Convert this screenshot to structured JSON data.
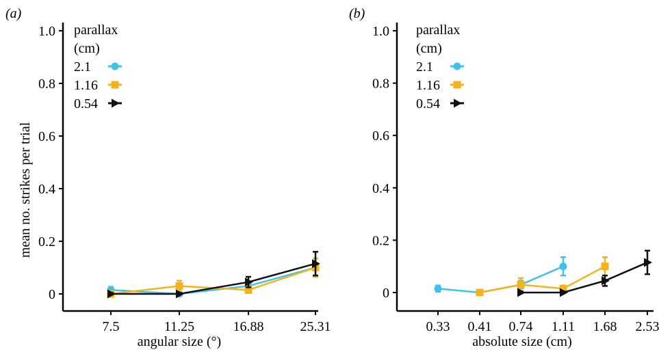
{
  "panels": [
    {
      "label": "(a)",
      "legend_title": [
        "parallax",
        "(cm)"
      ],
      "ylabel": "mean no. strikes per trial",
      "xlabel": "angular size (°)"
    },
    {
      "label": "(b)",
      "legend_title": [
        "parallax",
        "(cm)"
      ],
      "ylabel": "",
      "xlabel": "absolute size (cm)"
    }
  ],
  "chart_data": [
    {
      "type": "line",
      "title": "",
      "xlabel": "angular size (°)",
      "ylabel": "mean no. strikes per trial",
      "categories": [
        "7.5",
        "11.25",
        "16.88",
        "25.31"
      ],
      "yticks": [
        "0",
        "0.2",
        "0.4",
        "0.6",
        "0.8",
        "1.0"
      ],
      "ylim": [
        0,
        1.0
      ],
      "legend_position": "top-left",
      "series": [
        {
          "name": "2.1",
          "color": "#3ec1eb",
          "marker": "circle",
          "x": [
            "7.5",
            "11.25",
            "16.88",
            "25.31"
          ],
          "values": [
            0.015,
            0.0,
            0.03,
            0.1
          ],
          "err": [
            0.012,
            0.005,
            0.015,
            0.035
          ]
        },
        {
          "name": "1.16",
          "color": "#f5b21b",
          "marker": "square",
          "x": [
            "7.5",
            "11.25",
            "16.88",
            "25.31"
          ],
          "values": [
            0.0,
            0.03,
            0.015,
            0.1
          ],
          "err": [
            0.005,
            0.02,
            0.012,
            0.035
          ]
        },
        {
          "name": "0.54",
          "color": "#111111",
          "marker": "triangle-right",
          "x": [
            "7.5",
            "11.25",
            "16.88",
            "25.31"
          ],
          "values": [
            0.0,
            0.0,
            0.045,
            0.115
          ],
          "err": [
            0.004,
            0.004,
            0.02,
            0.045
          ]
        }
      ]
    },
    {
      "type": "line",
      "title": "",
      "xlabel": "absolute size (cm)",
      "ylabel": "",
      "categories": [
        "0.33",
        "0.41",
        "0.74",
        "1.11",
        "1.68",
        "2.53"
      ],
      "yticks": [
        "0",
        "0.2",
        "0.4",
        "0.6",
        "0.8",
        "1.0"
      ],
      "ylim": [
        0,
        1.0
      ],
      "legend_position": "top-left",
      "series": [
        {
          "name": "2.1",
          "color": "#3ec1eb",
          "marker": "circle",
          "x": [
            "0.33",
            "0.41",
            "0.74",
            "1.11"
          ],
          "values": [
            0.015,
            0.0,
            0.03,
            0.1
          ],
          "err": [
            0.012,
            0.005,
            0.015,
            0.035
          ]
        },
        {
          "name": "1.16",
          "color": "#f5b21b",
          "marker": "square",
          "x": [
            "0.41",
            "0.74",
            "1.11",
            "1.68"
          ],
          "values": [
            0.0,
            0.03,
            0.015,
            0.1
          ],
          "err": [
            0.005,
            0.025,
            0.012,
            0.035
          ]
        },
        {
          "name": "0.54",
          "color": "#111111",
          "marker": "triangle-right",
          "x": [
            "0.74",
            "1.11",
            "1.68",
            "2.53"
          ],
          "values": [
            0.0,
            0.0,
            0.045,
            0.115
          ],
          "err": [
            0.004,
            0.004,
            0.02,
            0.045
          ]
        }
      ]
    }
  ]
}
